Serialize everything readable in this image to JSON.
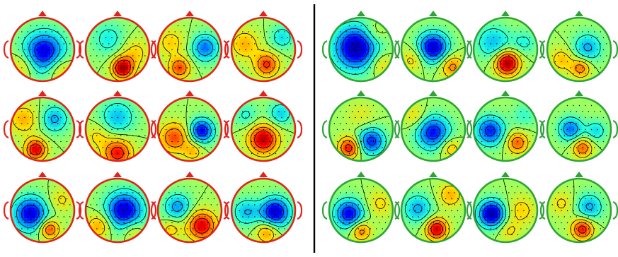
{
  "figure": {
    "groups": [
      {
        "name": "left",
        "outline_color": "#e0231c",
        "maps": [
          {
            "id": "L1",
            "blobs": [
              {
                "u": 0.05,
                "v": 0.08,
                "s": 0.42,
                "a": -1.0
              },
              {
                "u": 0.55,
                "v": 0.6,
                "s": 0.28,
                "a": 0.4
              },
              {
                "u": -0.6,
                "v": 0.5,
                "s": 0.28,
                "a": 0.35
              }
            ]
          },
          {
            "id": "L2",
            "blobs": [
              {
                "u": 0.15,
                "v": 0.55,
                "s": 0.22,
                "a": 1.15
              },
              {
                "u": -0.25,
                "v": -0.3,
                "s": 0.35,
                "a": -0.35
              },
              {
                "u": 0.5,
                "v": 0.1,
                "s": 0.3,
                "a": 0.35
              }
            ]
          },
          {
            "id": "L3",
            "blobs": [
              {
                "u": 0.45,
                "v": -0.05,
                "s": 0.28,
                "a": -0.7
              },
              {
                "u": -0.3,
                "v": 0.55,
                "s": 0.22,
                "a": 0.75
              },
              {
                "u": -0.55,
                "v": -0.2,
                "s": 0.3,
                "a": 0.35
              }
            ]
          },
          {
            "id": "L4",
            "blobs": [
              {
                "u": 0.1,
                "v": 0.45,
                "s": 0.25,
                "a": 0.8
              },
              {
                "u": -0.55,
                "v": -0.15,
                "s": 0.3,
                "a": 0.45
              },
              {
                "u": 0.55,
                "v": -0.35,
                "s": 0.25,
                "a": -0.4
              }
            ]
          }
        ]
      },
      {
        "name": "left-row2",
        "outline_color": "#e0231c",
        "maps": [
          {
            "id": "L5",
            "blobs": [
              {
                "u": -0.2,
                "v": 0.6,
                "s": 0.22,
                "a": 1.0
              },
              {
                "u": 0.35,
                "v": -0.3,
                "s": 0.28,
                "a": -0.55
              },
              {
                "u": -0.55,
                "v": -0.3,
                "s": 0.3,
                "a": 0.45
              }
            ]
          },
          {
            "id": "L6",
            "blobs": [
              {
                "u": 0.0,
                "v": 0.7,
                "s": 0.3,
                "a": 0.9
              },
              {
                "u": 0.0,
                "v": -0.35,
                "s": 0.35,
                "a": -0.5
              },
              {
                "u": -0.6,
                "v": 0.2,
                "s": 0.25,
                "a": 0.3
              }
            ]
          },
          {
            "id": "L7",
            "blobs": [
              {
                "u": 0.35,
                "v": 0.05,
                "s": 0.25,
                "a": -0.95
              },
              {
                "u": -0.45,
                "v": 0.25,
                "s": 0.3,
                "a": 0.75
              },
              {
                "u": 0.1,
                "v": 0.65,
                "s": 0.2,
                "a": 0.4
              }
            ]
          },
          {
            "id": "L8",
            "blobs": [
              {
                "u": 0.0,
                "v": 0.3,
                "s": 0.3,
                "a": 1.1
              },
              {
                "u": 0.5,
                "v": -0.45,
                "s": 0.25,
                "a": -0.45
              },
              {
                "u": -0.5,
                "v": -0.4,
                "s": 0.25,
                "a": -0.3
              }
            ]
          }
        ]
      },
      {
        "name": "left-row3",
        "outline_color": "#e0231c",
        "maps": [
          {
            "id": "L9",
            "blobs": [
              {
                "u": -0.35,
                "v": 0.1,
                "s": 0.35,
                "a": -1.0
              },
              {
                "u": 0.2,
                "v": 0.55,
                "s": 0.2,
                "a": 0.8
              },
              {
                "u": 0.55,
                "v": -0.3,
                "s": 0.25,
                "a": 0.3
              }
            ]
          },
          {
            "id": "L10",
            "blobs": [
              {
                "u": 0.2,
                "v": 0.0,
                "s": 0.38,
                "a": -1.05
              },
              {
                "u": -0.55,
                "v": 0.45,
                "s": 0.25,
                "a": 0.5
              },
              {
                "u": 0.45,
                "v": 0.6,
                "s": 0.22,
                "a": 0.3
              }
            ]
          },
          {
            "id": "L11",
            "blobs": [
              {
                "u": 0.35,
                "v": 0.45,
                "s": 0.3,
                "a": 1.0
              },
              {
                "u": -0.35,
                "v": -0.1,
                "s": 0.28,
                "a": -0.6
              },
              {
                "u": -0.55,
                "v": 0.55,
                "s": 0.2,
                "a": 0.35
              }
            ]
          },
          {
            "id": "L12",
            "blobs": [
              {
                "u": 0.35,
                "v": 0.05,
                "s": 0.3,
                "a": -1.05
              },
              {
                "u": -0.5,
                "v": 0.05,
                "s": 0.28,
                "a": -0.5
              },
              {
                "u": 0.1,
                "v": 0.65,
                "s": 0.22,
                "a": 0.55
              }
            ]
          }
        ]
      },
      {
        "name": "right",
        "outline_color": "#2fa23a",
        "maps": [
          {
            "id": "R1",
            "blobs": [
              {
                "u": -0.15,
                "v": -0.05,
                "s": 0.45,
                "a": -1.15
              },
              {
                "u": 0.6,
                "v": 0.45,
                "s": 0.25,
                "a": 0.35
              },
              {
                "u": 0.4,
                "v": -0.5,
                "s": 0.25,
                "a": 0.25
              }
            ]
          },
          {
            "id": "R2",
            "blobs": [
              {
                "u": 0.0,
                "v": -0.05,
                "s": 0.32,
                "a": -1.05
              },
              {
                "u": 0.55,
                "v": 0.5,
                "s": 0.25,
                "a": 0.6
              },
              {
                "u": -0.6,
                "v": 0.3,
                "s": 0.25,
                "a": 0.35
              }
            ]
          },
          {
            "id": "R3",
            "blobs": [
              {
                "u": 0.05,
                "v": 0.4,
                "s": 0.25,
                "a": 1.2
              },
              {
                "u": -0.35,
                "v": -0.2,
                "s": 0.35,
                "a": -0.5
              },
              {
                "u": 0.55,
                "v": -0.2,
                "s": 0.25,
                "a": -0.3
              }
            ]
          },
          {
            "id": "R4",
            "blobs": [
              {
                "u": 0.25,
                "v": -0.05,
                "s": 0.3,
                "a": -0.55
              },
              {
                "u": 0.05,
                "v": 0.55,
                "s": 0.2,
                "a": 0.65
              },
              {
                "u": -0.5,
                "v": 0.3,
                "s": 0.25,
                "a": 0.4
              }
            ]
          }
        ]
      },
      {
        "name": "right-row2",
        "outline_color": "#2fa23a",
        "maps": [
          {
            "id": "R5",
            "blobs": [
              {
                "u": 0.3,
                "v": 0.35,
                "s": 0.28,
                "a": -0.85
              },
              {
                "u": -0.35,
                "v": 0.55,
                "s": 0.22,
                "a": 0.9
              },
              {
                "u": 0.0,
                "v": -0.4,
                "s": 0.3,
                "a": 0.2
              }
            ]
          },
          {
            "id": "R6",
            "blobs": [
              {
                "u": 0.0,
                "v": 0.1,
                "s": 0.35,
                "a": -0.9
              },
              {
                "u": 0.5,
                "v": 0.55,
                "s": 0.22,
                "a": 0.45
              },
              {
                "u": -0.55,
                "v": -0.4,
                "s": 0.25,
                "a": 0.3
              }
            ]
          },
          {
            "id": "R7",
            "blobs": [
              {
                "u": -0.45,
                "v": 0.05,
                "s": 0.3,
                "a": -0.85
              },
              {
                "u": 0.35,
                "v": 0.4,
                "s": 0.22,
                "a": 0.7
              },
              {
                "u": 0.55,
                "v": -0.4,
                "s": 0.25,
                "a": -0.25
              }
            ]
          },
          {
            "id": "R8",
            "blobs": [
              {
                "u": -0.25,
                "v": 0.0,
                "s": 0.25,
                "a": -0.7
              },
              {
                "u": 0.1,
                "v": 0.55,
                "s": 0.2,
                "a": 0.7
              },
              {
                "u": 0.5,
                "v": 0.05,
                "s": 0.22,
                "a": -0.4
              }
            ]
          }
        ]
      },
      {
        "name": "right-row3",
        "outline_color": "#2fa23a",
        "maps": [
          {
            "id": "R9",
            "blobs": [
              {
                "u": -0.35,
                "v": 0.1,
                "s": 0.3,
                "a": -0.95
              },
              {
                "u": 0.0,
                "v": 0.6,
                "s": 0.2,
                "a": 0.65
              },
              {
                "u": 0.55,
                "v": -0.2,
                "s": 0.28,
                "a": 0.3
              }
            ]
          },
          {
            "id": "R10",
            "blobs": [
              {
                "u": 0.1,
                "v": 0.55,
                "s": 0.22,
                "a": 1.05
              },
              {
                "u": -0.45,
                "v": -0.05,
                "s": 0.3,
                "a": -0.55
              },
              {
                "u": 0.5,
                "v": -0.45,
                "s": 0.25,
                "a": 0.45
              }
            ]
          },
          {
            "id": "R11",
            "blobs": [
              {
                "u": -0.4,
                "v": 0.1,
                "s": 0.28,
                "a": -1.15
              },
              {
                "u": 0.45,
                "v": 0.0,
                "s": 0.3,
                "a": 0.35
              },
              {
                "u": 0.1,
                "v": 0.6,
                "s": 0.22,
                "a": 0.3
              }
            ]
          },
          {
            "id": "R12",
            "blobs": [
              {
                "u": 0.1,
                "v": 0.55,
                "s": 0.22,
                "a": 0.9
              },
              {
                "u": 0.3,
                "v": -0.1,
                "s": 0.28,
                "a": -0.55
              },
              {
                "u": -0.5,
                "v": -0.2,
                "s": 0.25,
                "a": 0.3
              }
            ]
          }
        ]
      }
    ],
    "divider_color": "#000000",
    "contour_color": "#000000",
    "colormap": [
      "#00008f",
      "#0000ff",
      "#00a0ff",
      "#20ffdf",
      "#9fff60",
      "#ffe000",
      "#ff8000",
      "#ff0000",
      "#8f0000"
    ]
  }
}
